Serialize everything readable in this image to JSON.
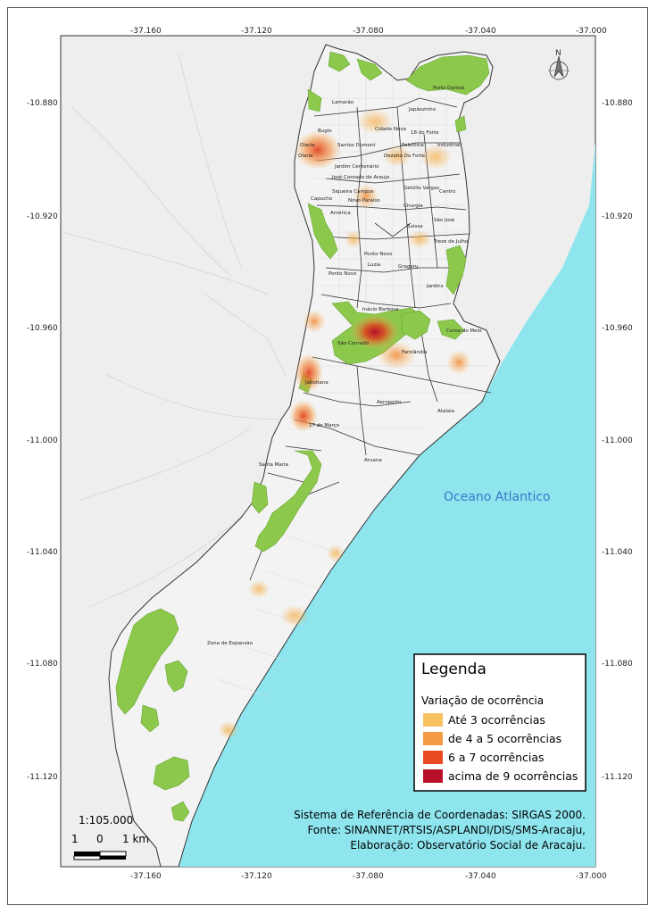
{
  "map": {
    "top_ticks": [
      "-37.160",
      "-37.120",
      "-37.080",
      "-37.040",
      "-37.000"
    ],
    "bottom_ticks": [
      "-37.160",
      "-37.120",
      "-37.080",
      "-37.040",
      "-37.000"
    ],
    "left_ticks": [
      "-10.880",
      "-10.920",
      "-10.960",
      "-11.000",
      "-11.040",
      "-11.080",
      "-11.120"
    ],
    "right_ticks": [
      "-10.880",
      "-10.920",
      "-10.960",
      "-11.000",
      "-11.040",
      "-11.080",
      "-11.120"
    ],
    "ocean_label": "Oceano Atlantico",
    "north_label": "N",
    "neighborhoods": [
      "Porto Dantas",
      "Lamarão",
      "Bugio",
      "Olaria",
      "Santos Dumont",
      "Cidade Nova",
      "Palestina",
      "18 do Forte",
      "Industrial",
      "Japãozinho",
      "Dezoito Do Forte",
      "Jardim Centenário",
      "José Conrado de Araujo",
      "Siqueira Campos",
      "Getúlio Vargas",
      "Centro",
      "Capucho",
      "Novo Paraíso",
      "América",
      "Cirurgia",
      "São José",
      "Suissa",
      "Treze de Julho",
      "Ponto Novo",
      "Luzia",
      "Grageru",
      "Inácio Barbosa",
      "Jardins",
      "Coroa do Meio",
      "São Conrado",
      "Farolândia",
      "Atalaia",
      "Ponto Novo",
      "Aeroporto",
      "17 de Março",
      "Santa Maria",
      "Aruana",
      "Zona de Expansão",
      "Jabotiana",
      "Olaria"
    ],
    "legend": {
      "title": "Legenda",
      "subtitle": "Variação de ocorrência",
      "items": [
        {
          "label": "Até 3 ocorrências",
          "color": "#f7c162"
        },
        {
          "label": "de 4 a 5 ocorrências",
          "color": "#f59a44"
        },
        {
          "label": "6 a 7 ocorrências",
          "color": "#ea4a22"
        },
        {
          "label": "acima de 9 ocorrências",
          "color": "#b8102a"
        }
      ]
    },
    "credits": [
      "Sistema de Referência de Coordenadas: SIRGAS 2000.",
      "Fonte: SINANNET/RTSIS/ASPLANDI/DIS/SMS-Aracaju,",
      "Elaboração: Observatório Social de Aracaju."
    ],
    "scale": {
      "ratio": "1:105.000",
      "labels": [
        "1",
        "0",
        "1 km"
      ]
    },
    "colors": {
      "ocean": "#8ee5ee",
      "land": "#f2f2f2",
      "outside": "#ececec",
      "green": "#8cc84b",
      "boundary": "#333333"
    }
  }
}
